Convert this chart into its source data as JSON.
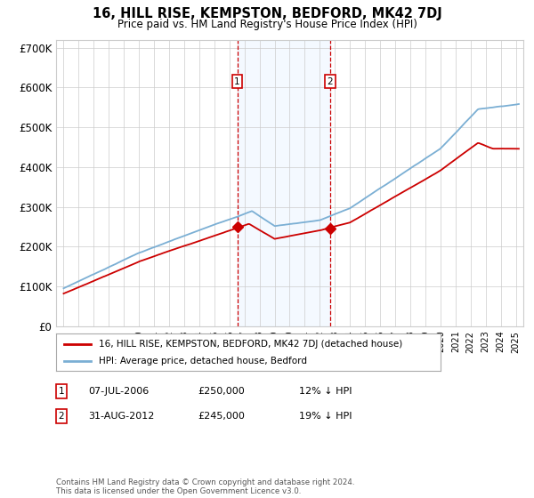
{
  "title": "16, HILL RISE, KEMPSTON, BEDFORD, MK42 7DJ",
  "subtitle": "Price paid vs. HM Land Registry's House Price Index (HPI)",
  "xlim": [
    1994.5,
    2025.5
  ],
  "ylim": [
    0,
    720000
  ],
  "yticks": [
    0,
    100000,
    200000,
    300000,
    400000,
    500000,
    600000,
    700000
  ],
  "ytick_labels": [
    "£0",
    "£100K",
    "£200K",
    "£300K",
    "£400K",
    "£500K",
    "£600K",
    "£700K"
  ],
  "transaction1": {
    "date_num": 2006.52,
    "price": 250000,
    "label": "1",
    "text": "07-JUL-2006",
    "amount": "£250,000",
    "pct": "12% ↓ HPI"
  },
  "transaction2": {
    "date_num": 2012.67,
    "price": 245000,
    "label": "2",
    "text": "31-AUG-2012",
    "amount": "£245,000",
    "pct": "19% ↓ HPI"
  },
  "legend_line1": "16, HILL RISE, KEMPSTON, BEDFORD, MK42 7DJ (detached house)",
  "legend_line2": "HPI: Average price, detached house, Bedford",
  "footnote": "Contains HM Land Registry data © Crown copyright and database right 2024.\nThis data is licensed under the Open Government Licence v3.0.",
  "red_color": "#cc0000",
  "blue_color": "#7bafd4",
  "background_color": "#ffffff",
  "grid_color": "#cccccc",
  "shade_color": "#ddeeff"
}
